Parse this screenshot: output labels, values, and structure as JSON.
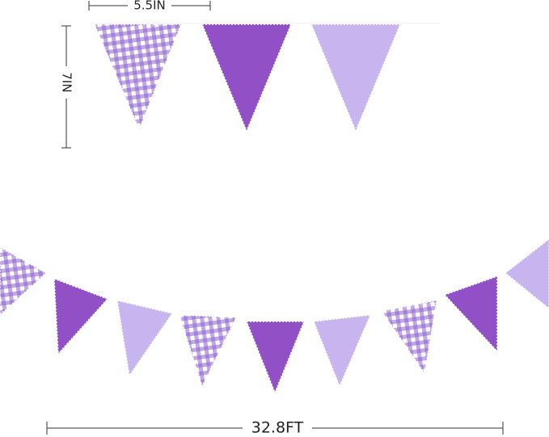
{
  "dimensions": {
    "flag_width": "5.5IN",
    "flag_height": "7IN",
    "total_length": "32.8FT"
  }
}
